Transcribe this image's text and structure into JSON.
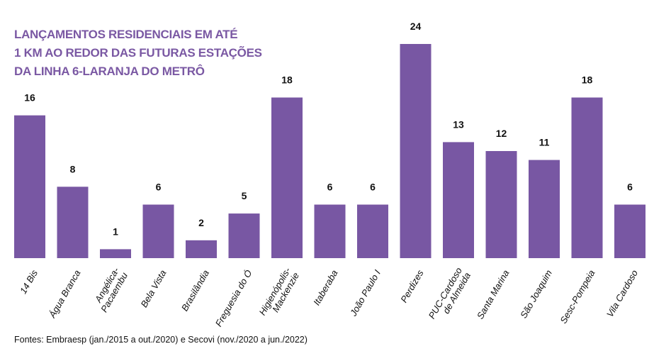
{
  "chart_data": {
    "type": "bar",
    "title_lines": [
      "LANÇAMENTOS RESIDENCIAIS EM ATÉ",
      "1 KM AO REDOR DAS FUTURAS ESTAÇÕES",
      "DA LINHA 6-LARANJA DO METRÔ"
    ],
    "categories": [
      "14 Bis",
      "Água Branca",
      "Angélica-\nPacaembu",
      "Bela Vista",
      "Brasilândia",
      "Freguesia do Ó",
      "Higienópolis-\nMackenzie",
      "Itaberaba",
      "João Paulo I",
      "Perdizes",
      "PUC-Cardoso\nde Almeida",
      "Santa Marina",
      "São Joaquim",
      "Sesc-Pompeia",
      "Vila Cardoso"
    ],
    "values": [
      16,
      8,
      1,
      6,
      2,
      5,
      18,
      6,
      6,
      24,
      13,
      12,
      11,
      18,
      6
    ],
    "ylim": [
      0,
      24
    ],
    "grid": false,
    "data_labels": true,
    "bar_color": "#7857a3",
    "source": "Fontes: Embraesp (jan./2015 a out./2020) e Secovi (nov./2020 a jun./2022)"
  }
}
